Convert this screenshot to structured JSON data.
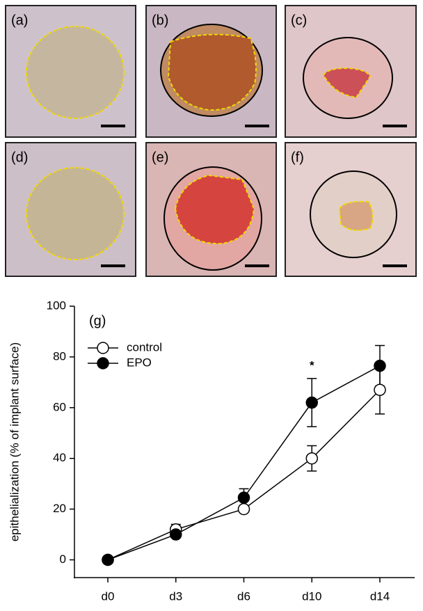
{
  "panels": [
    "(a)",
    "(b)",
    "(c)",
    "(d)",
    "(e)",
    "(f)"
  ],
  "chart_data": {
    "type": "line",
    "panel_label": "(g)",
    "y_label": "epithelialization (% of implant surface)",
    "categories": [
      "d0",
      "d3",
      "d6",
      "d10",
      "d14"
    ],
    "series": [
      {
        "name": "control",
        "color": "#ffffff",
        "values": [
          0,
          12,
          20,
          40,
          67
        ],
        "errors": [
          0,
          2,
          1,
          5,
          9.5
        ]
      },
      {
        "name": "EPO",
        "color": "#000000",
        "values": [
          0,
          10,
          24.5,
          62,
          76.5
        ],
        "errors": [
          0,
          1,
          3.5,
          9.5,
          8
        ]
      }
    ],
    "annotations": [
      {
        "text": "*",
        "category": "d10"
      }
    ],
    "ylim": [
      -7,
      100
    ],
    "yticks": [
      0,
      20,
      40,
      60,
      80,
      100
    ],
    "legend": "upper left",
    "grid": false
  }
}
